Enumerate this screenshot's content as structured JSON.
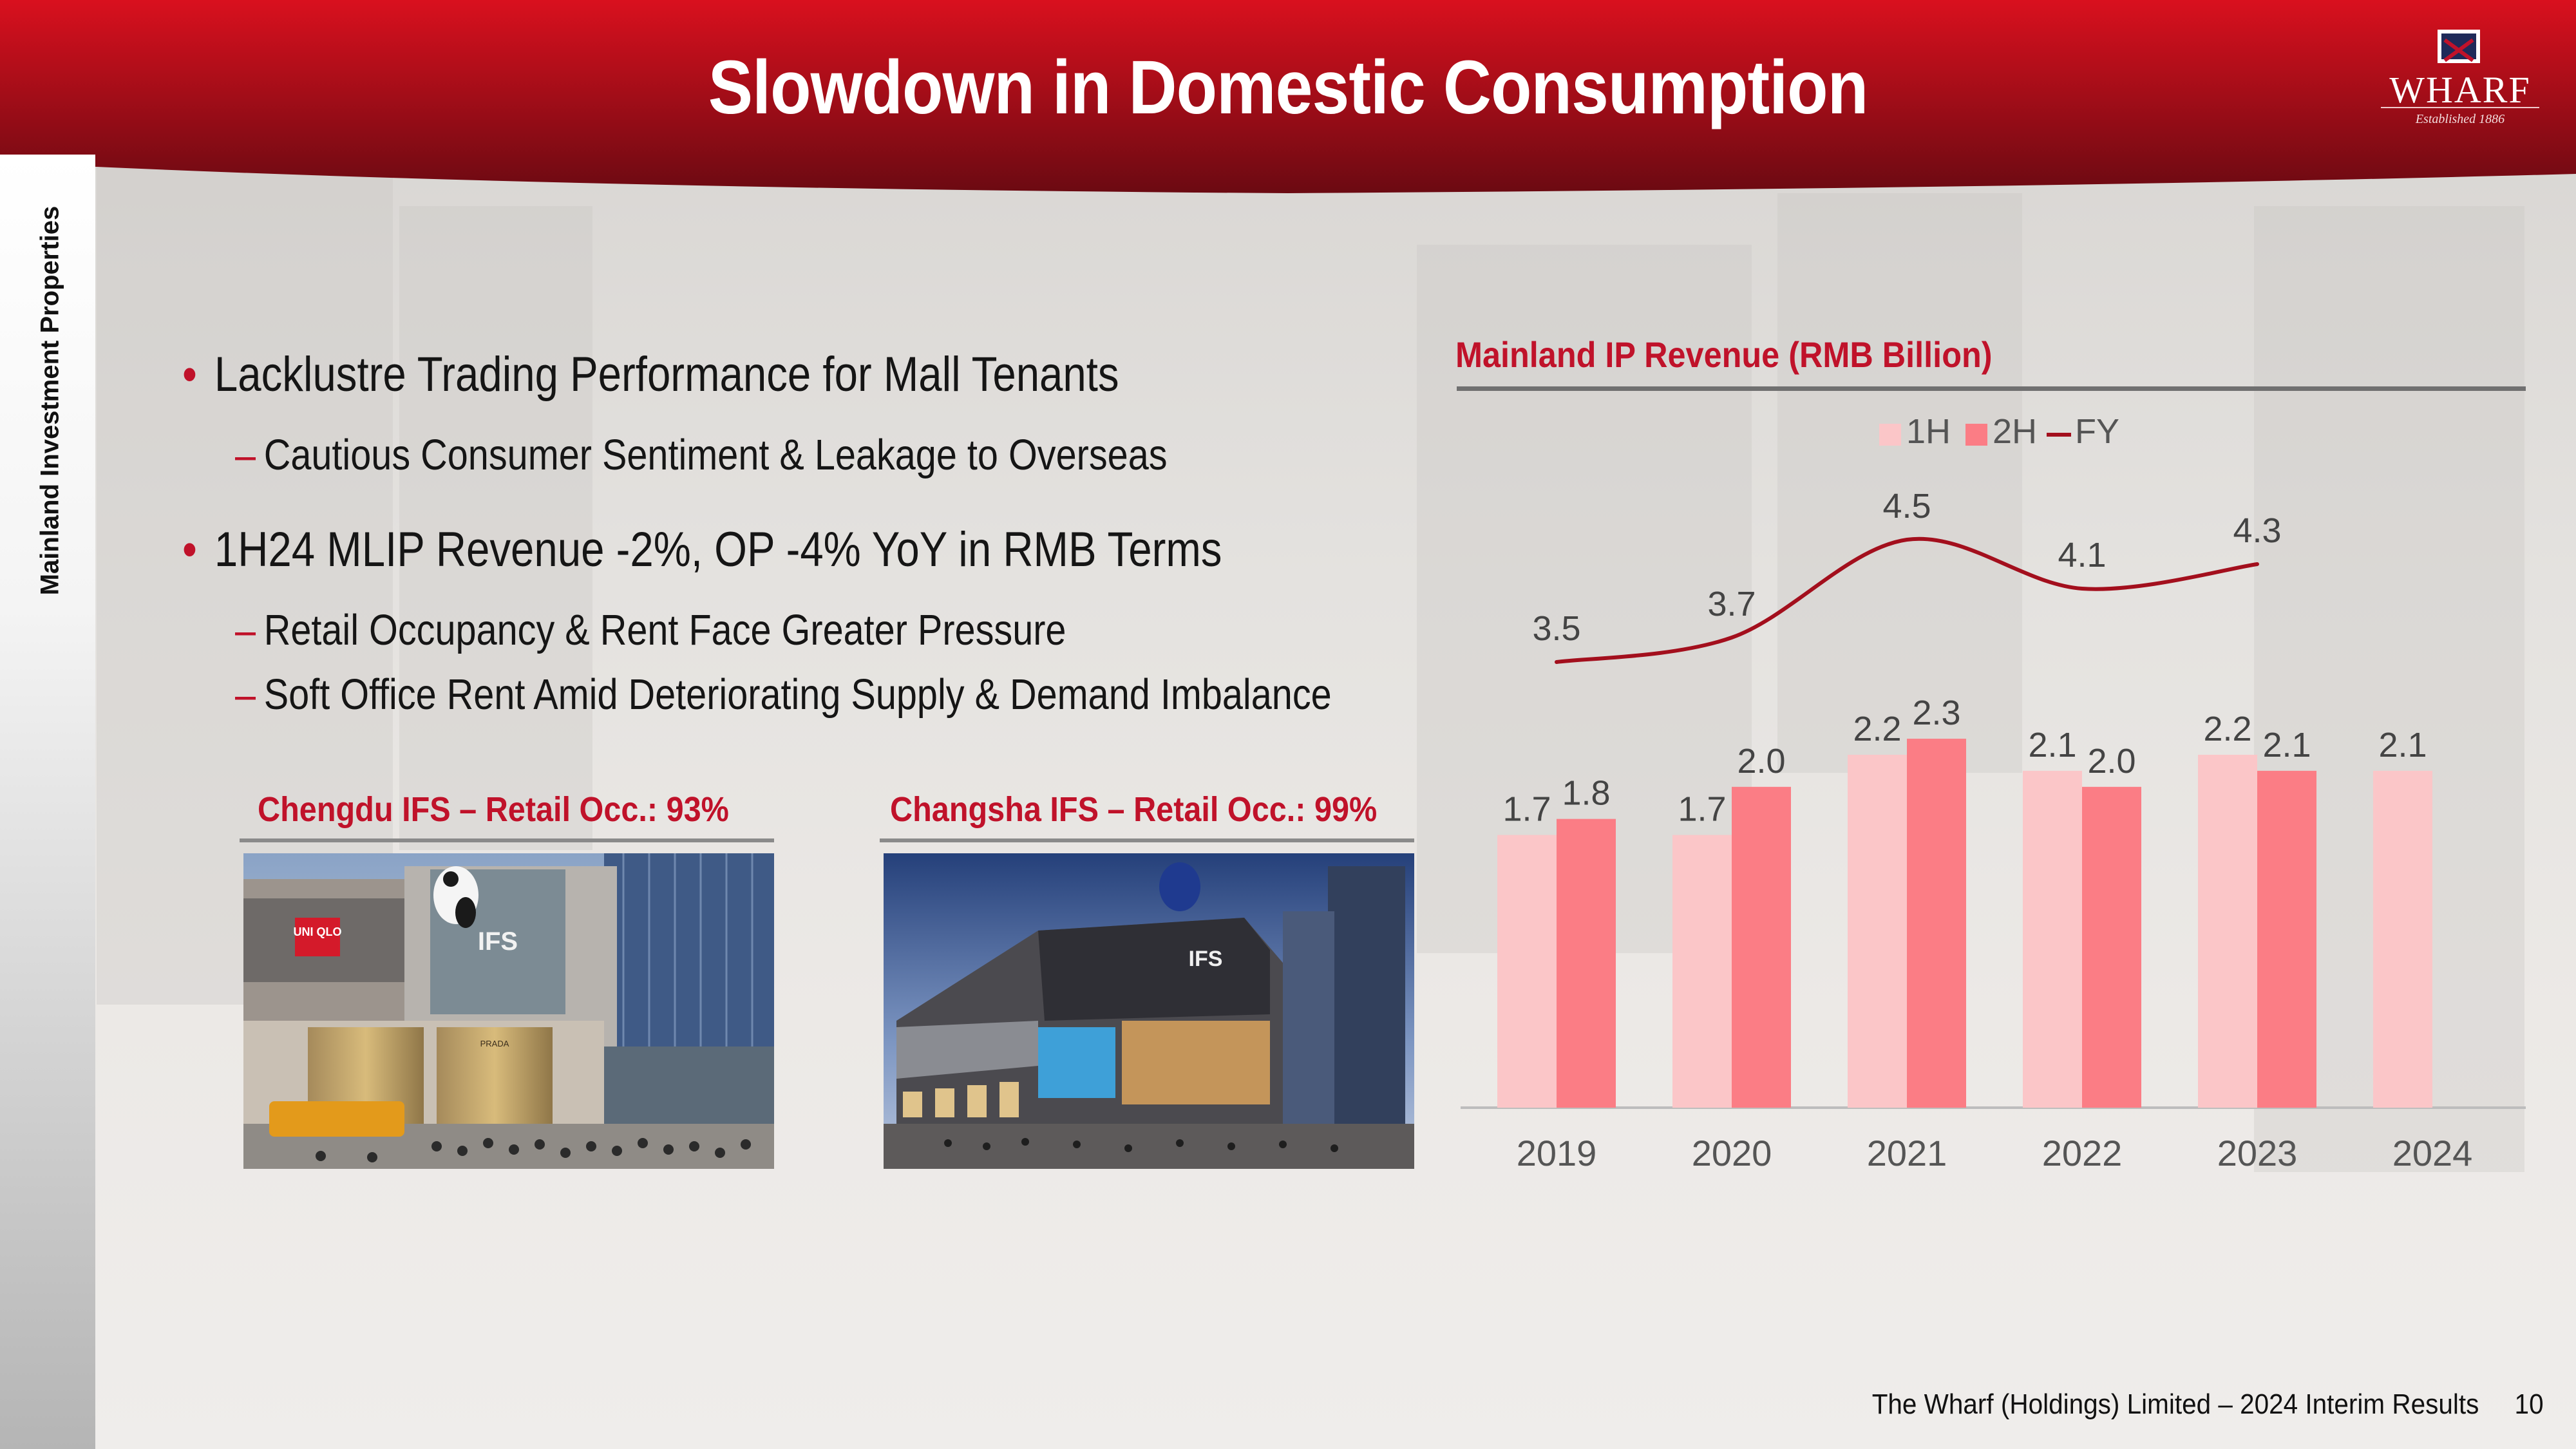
{
  "header": {
    "title": "Slowdown in Domestic Consumption",
    "logo_name": "WHARF",
    "logo_tagline": "Established 1886"
  },
  "sidebar": {
    "section_label": "Mainland Investment Properties"
  },
  "bullets": [
    {
      "text": "Lacklustre Trading Performance for Mall Tenants",
      "subs": [
        "Cautious Consumer Sentiment & Leakage to Overseas"
      ]
    },
    {
      "text": "1H24 MLIP Revenue -2%, OP -4% YoY in RMB Terms",
      "subs": [
        "Retail Occupancy & Rent Face Greater Pressure",
        "Soft Office Rent Amid Deteriorating Supply & Demand Imbalance"
      ]
    }
  ],
  "photos": [
    {
      "caption": "Chengdu IFS – Retail Occ.: 93%",
      "signage": [
        "UNI QLO",
        "IFS",
        "PRADA"
      ]
    },
    {
      "caption": "Changsha IFS – Retail Occ.: 99%",
      "signage": [
        "IFS"
      ]
    }
  ],
  "footer": {
    "text": "The Wharf (Holdings) Limited – 2024 Interim Results",
    "page": "10"
  },
  "colors": {
    "brand_red": "#c0122a",
    "bar_1h": "#fbc6c8",
    "bar_2h": "#fb7d85",
    "line_fy": "#a30f1d"
  },
  "chart_data": {
    "type": "bar",
    "title": "Mainland IP Revenue (RMB Billion)",
    "categories": [
      "2019",
      "2020",
      "2021",
      "2022",
      "2023",
      "2024"
    ],
    "series": [
      {
        "name": "1H",
        "type": "bar",
        "values": [
          1.7,
          1.7,
          2.2,
          2.1,
          2.2,
          2.1
        ]
      },
      {
        "name": "2H",
        "type": "bar",
        "values": [
          1.8,
          2.0,
          2.3,
          2.0,
          2.1,
          null
        ]
      },
      {
        "name": "FY",
        "type": "line",
        "values": [
          3.5,
          3.7,
          4.5,
          4.1,
          4.3,
          null
        ]
      }
    ],
    "legend": "top-center",
    "grid": false,
    "ylim": [
      0,
      2.6
    ],
    "line_ylim": [
      3.3,
      4.7
    ]
  }
}
